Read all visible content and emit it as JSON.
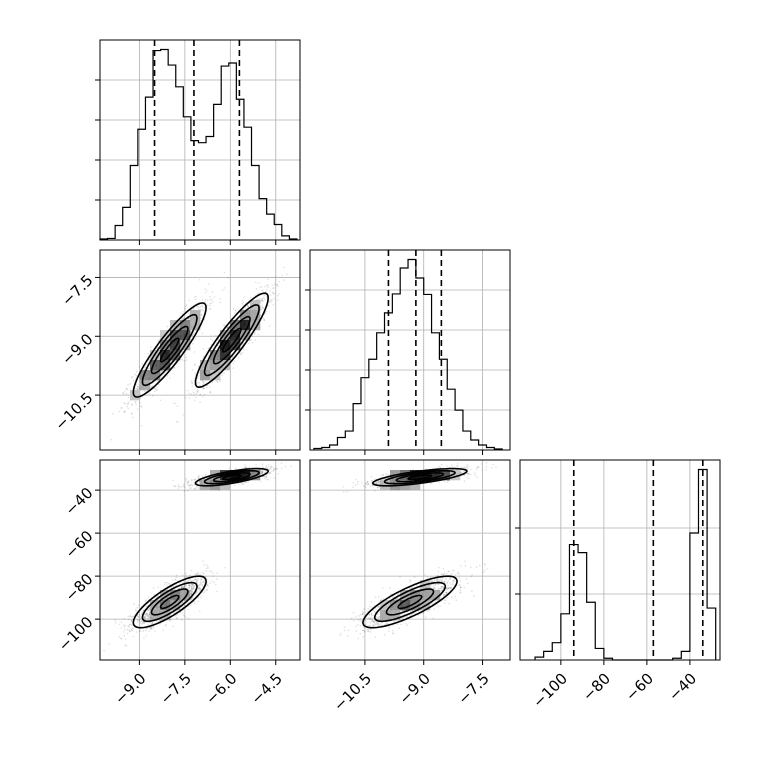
{
  "chart_data": {
    "type": "corner",
    "parameters": [
      {
        "range": [
          -10.3,
          -3.7
        ],
        "ticks": [
          -9.0,
          -7.5,
          -6.0,
          -4.5
        ],
        "tick_labels": [
          "−9.0",
          "−7.5",
          "−6.0",
          "−4.5"
        ],
        "quantiles": [
          -8.5,
          -7.2,
          -5.7
        ],
        "hist": {
          "edges": [
            -10.3,
            -10.05,
            -9.8,
            -9.55,
            -9.3,
            -9.05,
            -8.8,
            -8.55,
            -8.3,
            -8.05,
            -7.8,
            -7.55,
            -7.3,
            -7.05,
            -6.8,
            -6.55,
            -6.3,
            -6.05,
            -5.8,
            -5.55,
            -5.3,
            -5.05,
            -4.8,
            -4.55,
            -4.3,
            -4.05,
            -3.8
          ],
          "counts": [
            0.2,
            0.3,
            2.8,
            6.3,
            14.4,
            21.4,
            27.6,
            36.6,
            36.8,
            33.8,
            29.6,
            23.8,
            19.2,
            18.8,
            20.0,
            26.2,
            33.6,
            34.2,
            27.2,
            21.8,
            14.4,
            8.0,
            5.0,
            3.0,
            0.8,
            0.2
          ]
        }
      },
      {
        "range": [
          -11.9,
          -6.8
        ],
        "ticks": [
          -10.5,
          -9.0,
          -7.5
        ],
        "tick_labels": [
          "−10.5",
          "−9.0",
          "−7.5"
        ],
        "quantiles": [
          -9.9,
          -9.2,
          -8.55
        ],
        "hist": {
          "edges": [
            -11.8,
            -11.6,
            -11.4,
            -11.2,
            -11.0,
            -10.8,
            -10.6,
            -10.4,
            -10.2,
            -10.0,
            -9.8,
            -9.6,
            -9.4,
            -9.2,
            -9.0,
            -8.8,
            -8.6,
            -8.4,
            -8.2,
            -8.0,
            -7.8,
            -7.6,
            -7.4,
            -7.2,
            -7.0
          ],
          "counts": [
            0.3,
            0.5,
            1.0,
            2.5,
            3.8,
            9.3,
            14.5,
            18.2,
            23.5,
            27.5,
            31.3,
            36.5,
            38.2,
            34.5,
            31.2,
            23.5,
            18.2,
            12.2,
            8.0,
            3.8,
            2.0,
            1.0,
            0.5,
            0.2
          ]
        }
      },
      {
        "range": [
          -119,
          -26
        ],
        "ticks": [
          -100,
          -80,
          -60,
          -40
        ],
        "tick_labels": [
          "−100",
          "−80",
          "−60",
          "−40"
        ],
        "quantiles": [
          -94,
          -57,
          -34
        ],
        "hist": {
          "edges": [
            -112,
            -108,
            -104,
            -100,
            -96,
            -92,
            -88,
            -84,
            -80,
            -76,
            -72,
            -68,
            -64,
            -60,
            -56,
            -52,
            -48,
            -44,
            -40,
            -36,
            -32,
            -28
          ],
          "counts": [
            0.5,
            1.5,
            3.0,
            8.0,
            20.0,
            18.6,
            10.0,
            2.0,
            0.3,
            0,
            0,
            0,
            0,
            0,
            0,
            0,
            0.3,
            1.5,
            22.0,
            33.0,
            9.0
          ]
        }
      }
    ],
    "modes": [
      {
        "mean": [
          -8.0,
          -9.35,
          -92.0
        ],
        "sd": [
          0.6,
          0.6,
          6.0
        ],
        "corr": {
          "0_1": 0.9,
          "0_2": 0.8,
          "1_2": 0.8
        }
      },
      {
        "mean": [
          -5.95,
          -9.1,
          -34.0
        ],
        "sd": [
          0.6,
          0.6,
          2.0
        ],
        "corr": {
          "0_1": 0.9,
          "0_2": 0.7,
          "1_2": 0.7
        }
      }
    ]
  }
}
